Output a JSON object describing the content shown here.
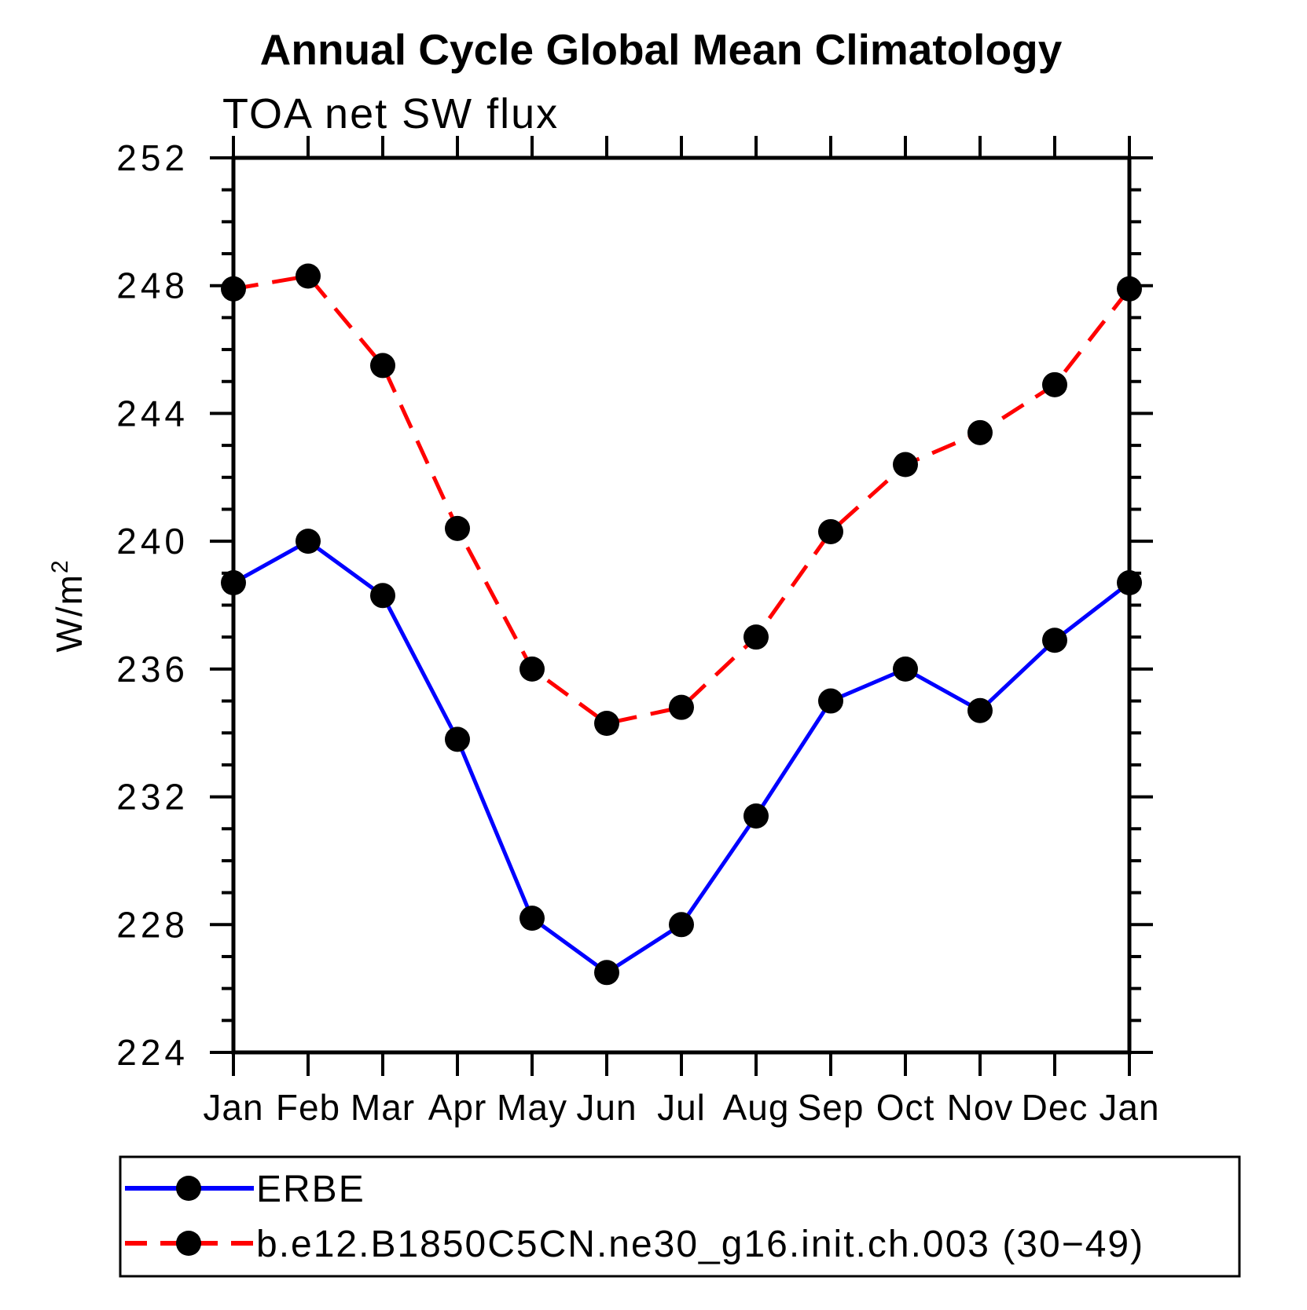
{
  "header": {
    "title": "Annual Cycle Global Mean Climatology",
    "subtitle": "TOA net SW flux"
  },
  "chart_data": {
    "type": "line",
    "title": "Annual Cycle Global Mean Climatology",
    "subtitle": "TOA net SW flux",
    "xlabel": "",
    "ylabel": "W/m²",
    "ylabel_parts": {
      "base": "W/m",
      "sup": "2"
    },
    "categories": [
      "Jan",
      "Feb",
      "Mar",
      "Apr",
      "May",
      "Jun",
      "Jul",
      "Aug",
      "Sep",
      "Oct",
      "Nov",
      "Dec",
      "Jan"
    ],
    "ylim": [
      224,
      252
    ],
    "ytick_major": 4,
    "ytick_minor": 1,
    "grid": false,
    "legend_position": "bottom",
    "axis_color": "#000000",
    "series": [
      {
        "name": "ERBE",
        "color": "#0000ff",
        "style": "solid",
        "marker": "filled-circle",
        "marker_color": "#000000",
        "values": [
          238.7,
          240.0,
          238.3,
          233.8,
          228.2,
          226.5,
          228.0,
          231.4,
          235.0,
          236.0,
          234.7,
          236.9,
          238.7
        ]
      },
      {
        "name": "b.e12.B1850C5CN.ne30_g16.init.ch.003 (30−49)",
        "color": "#ff0000",
        "style": "dashed",
        "marker": "filled-circle",
        "marker_color": "#000000",
        "values": [
          247.9,
          248.3,
          245.5,
          240.4,
          236.0,
          234.3,
          234.8,
          237.0,
          240.3,
          242.4,
          243.4,
          244.9,
          247.9
        ]
      }
    ]
  }
}
